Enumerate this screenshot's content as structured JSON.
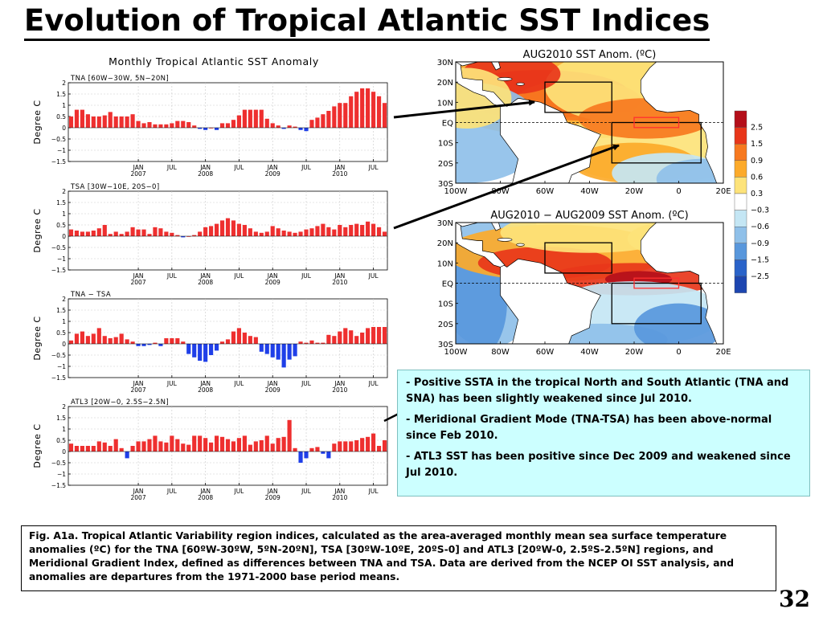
{
  "title": "Evolution of Tropical Atlantic SST Indices",
  "slide_number": "32",
  "chart_data": [
    {
      "type": "bar",
      "title": "Monthly Tropical Atlantic SST Anomaly",
      "subtitle": "TNA [60W−30W, 5N−20N]",
      "ylabel": "Degree C",
      "ylim": [
        -1.5,
        2
      ],
      "yticks": [
        "−1.5",
        "−1",
        "−0.5",
        "0",
        "0.5",
        "1",
        "1.5",
        "2"
      ],
      "xticks": [
        "JAN\n2007",
        "JUL",
        "JAN\n2008",
        "JUL",
        "JAN\n2009",
        "JUL",
        "JAN\n2010",
        "JUL"
      ],
      "period": "Jan 2006 - Aug 2010",
      "values": [
        0.5,
        0.8,
        0.8,
        0.6,
        0.5,
        0.5,
        0.55,
        0.7,
        0.5,
        0.5,
        0.5,
        0.6,
        0.3,
        0.2,
        0.25,
        0.15,
        0.15,
        0.15,
        0.2,
        0.3,
        0.3,
        0.25,
        0.1,
        -0.05,
        -0.1,
        0,
        -0.1,
        0.2,
        0.2,
        0.35,
        0.55,
        0.8,
        0.8,
        0.8,
        0.8,
        0.4,
        0.2,
        0.1,
        -0.05,
        0.1,
        0.05,
        -0.1,
        -0.15,
        0.35,
        0.45,
        0.6,
        0.75,
        0.95,
        1.1,
        1.1,
        1.4,
        1.6,
        1.75,
        1.75,
        1.6,
        1.4,
        1.1
      ]
    },
    {
      "type": "bar",
      "subtitle": "TSA [30W−10E, 20S−0]",
      "ylabel": "Degree C",
      "ylim": [
        -1.5,
        2
      ],
      "yticks": [
        "−1.5",
        "−1",
        "−0.5",
        "0",
        "0.5",
        "1",
        "1.5",
        "2"
      ],
      "xticks": [
        "JAN\n2007",
        "JUL",
        "JAN\n2008",
        "JUL",
        "JAN\n2009",
        "JUL",
        "JAN\n2010",
        "JUL"
      ],
      "values": [
        0.3,
        0.25,
        0.2,
        0.2,
        0.25,
        0.35,
        0.5,
        0.1,
        0.2,
        0.1,
        0.2,
        0.4,
        0.3,
        0.3,
        0.1,
        0.4,
        0.35,
        0.2,
        0.15,
        0.05,
        -0.05,
        0,
        0.05,
        0.2,
        0.4,
        0.45,
        0.55,
        0.7,
        0.8,
        0.7,
        0.55,
        0.5,
        0.35,
        0.2,
        0.15,
        0.2,
        0.45,
        0.35,
        0.25,
        0.2,
        0.15,
        0.2,
        0.3,
        0.35,
        0.45,
        0.55,
        0.4,
        0.3,
        0.5,
        0.4,
        0.5,
        0.55,
        0.5,
        0.65,
        0.55,
        0.4,
        0.2
      ]
    },
    {
      "type": "bar",
      "subtitle": "TNA − TSA",
      "ylabel": "Degree C",
      "ylim": [
        -1.5,
        2
      ],
      "yticks": [
        "−1.5",
        "−1",
        "−0.5",
        "0",
        "0.5",
        "1",
        "1.5",
        "2"
      ],
      "xticks": [
        "JAN\n2007",
        "JUL",
        "JAN\n2008",
        "JUL",
        "JAN\n2009",
        "JUL",
        "JAN\n2010",
        "JUL"
      ],
      "values": [
        0.15,
        0.45,
        0.55,
        0.35,
        0.45,
        0.7,
        0.35,
        0.25,
        0.3,
        0.45,
        0.2,
        0.1,
        -0.1,
        -0.1,
        -0.05,
        0.05,
        -0.1,
        0.25,
        0.25,
        0.25,
        0.1,
        -0.45,
        -0.6,
        -0.75,
        -0.8,
        -0.5,
        -0.3,
        0.1,
        0.2,
        0.55,
        0.7,
        0.5,
        0.35,
        0.3,
        -0.35,
        -0.45,
        -0.6,
        -0.7,
        -1.05,
        -0.7,
        -0.55,
        0.1,
        0.05,
        0.15,
        0.05,
        0.05,
        0.4,
        0.35,
        0.55,
        0.7,
        0.6,
        0.35,
        0.5,
        0.7,
        0.75,
        0.75,
        0.75
      ]
    },
    {
      "type": "bar",
      "subtitle": "ATL3 [20W−0, 2.5S−2.5N]",
      "ylabel": "Degree C",
      "ylim": [
        -1.5,
        2
      ],
      "yticks": [
        "−1.5",
        "−1",
        "−0.5",
        "0",
        "0.5",
        "1",
        "1.5",
        "2"
      ],
      "xticks": [
        "JAN\n2007",
        "JUL",
        "JAN\n2008",
        "JUL",
        "JAN\n2009",
        "JUL",
        "JAN\n2010",
        "JUL"
      ],
      "values": [
        0.35,
        0.25,
        0.25,
        0.25,
        0.25,
        0.45,
        0.4,
        0.25,
        0.55,
        0.15,
        -0.3,
        0.25,
        0.45,
        0.45,
        0.55,
        0.7,
        0.45,
        0.4,
        0.7,
        0.55,
        0.35,
        0.3,
        0.7,
        0.7,
        0.6,
        0.4,
        0.7,
        0.65,
        0.55,
        0.45,
        0.6,
        0.7,
        0.3,
        0.45,
        0.5,
        0.7,
        0.35,
        0.6,
        0.65,
        1.4,
        0.15,
        -0.5,
        -0.3,
        0.15,
        0.2,
        -0.1,
        -0.3,
        0.35,
        0.45,
        0.45,
        0.45,
        0.5,
        0.6,
        0.65,
        0.8,
        0.25,
        0.5
      ]
    },
    {
      "type": "heatmap",
      "title": "AUG2010 SST Anom. (ºC)",
      "lat_labels": [
        "30N",
        "20N",
        "10N",
        "EQ",
        "10S",
        "20S",
        "30S"
      ],
      "lon_labels": [
        "100W",
        "80W",
        "60W",
        "40W",
        "20W",
        "0",
        "20E"
      ],
      "colorbar_levels": [
        "2.5",
        "1.5",
        "0.9",
        "0.6",
        "0.3",
        "−0.3",
        "−0.6",
        "−0.9",
        "−1.5",
        "−2.5"
      ]
    },
    {
      "type": "heatmap",
      "title": "AUG2010 − AUG2009 SST Anom. (ºC)",
      "lat_labels": [
        "30N",
        "20N",
        "10N",
        "EQ",
        "10S",
        "20S",
        "30S"
      ],
      "lon_labels": [
        "100W",
        "80W",
        "60W",
        "40W",
        "20W",
        "0",
        "20E"
      ],
      "colorbar_levels": [
        "2.5",
        "1.5",
        "0.9",
        "0.6",
        "0.3",
        "−0.3",
        "−0.6",
        "−0.9",
        "−1.5",
        "−2.5"
      ]
    }
  ],
  "colors": {
    "positive_bar": "#ee2f2f",
    "negative_bar": "#1f3fe8",
    "grid": "#c9c9c9",
    "notes_bg": "#ccffff",
    "colorbar": [
      "#b40f1a",
      "#e8361a",
      "#f7791f",
      "#fcaa2a",
      "#fde37a",
      "#ffffff",
      "#c4e6f4",
      "#8fc0e9",
      "#5897dc",
      "#2a63c9",
      "#1d46b0"
    ]
  },
  "notes": [
    "- Positive SSTA in the tropical North and South  Atlantic (TNA and SNA) has been slightly weakened since Jul 2010.",
    "- Meridional Gradient Mode (TNA-TSA) has been above-normal since Feb 2010.",
    "- ATL3 SST has been positive since Dec 2009 and weakened since Jul 2010."
  ],
  "caption": "Fig. A1a. Tropical Atlantic Variability region indices, calculated as the area-averaged monthly mean sea surface temperature anomalies (ºC) for the TNA [60ºW-30ºW, 5ºN-20ºN], TSA [30ºW-10ºE, 20ºS-0] and ATL3 [20ºW-0, 2.5ºS-2.5ºN] regions, and Meridional Gradient Index, defined as differences between TNA and TSA. Data are derived from the NCEP OI SST analysis, and anomalies are departures from the 1971-2000 base period means."
}
